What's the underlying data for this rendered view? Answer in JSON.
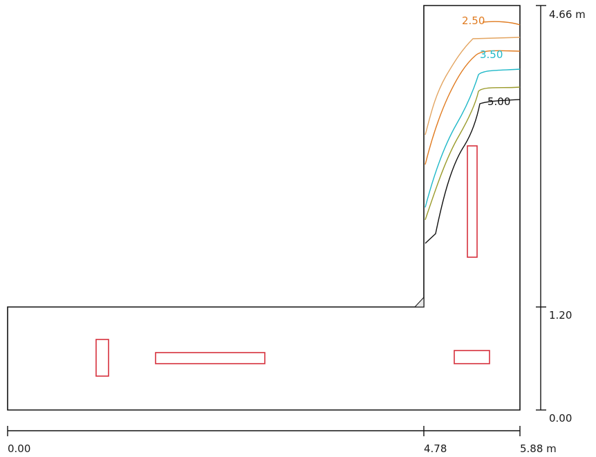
{
  "plan": {
    "contours": [
      {
        "label": "2.50",
        "color": "#e07b20"
      },
      {
        "label": "3.50",
        "color": "#1fb8c8"
      },
      {
        "label": "5.00",
        "color": "#111111"
      }
    ],
    "contour_colors": {
      "light_orange": "#e3a460",
      "olive": "#9a9a2a",
      "dark": "#111111"
    },
    "luminaire_color": "#d6303c",
    "outline_color": "#111111"
  },
  "dimensions": {
    "horizontal": {
      "start": "0.00",
      "mid": "4.78",
      "end": "5.88 m"
    },
    "vertical": {
      "bottom": "0.00",
      "mid": "1.20",
      "top": "4.66 m"
    }
  }
}
